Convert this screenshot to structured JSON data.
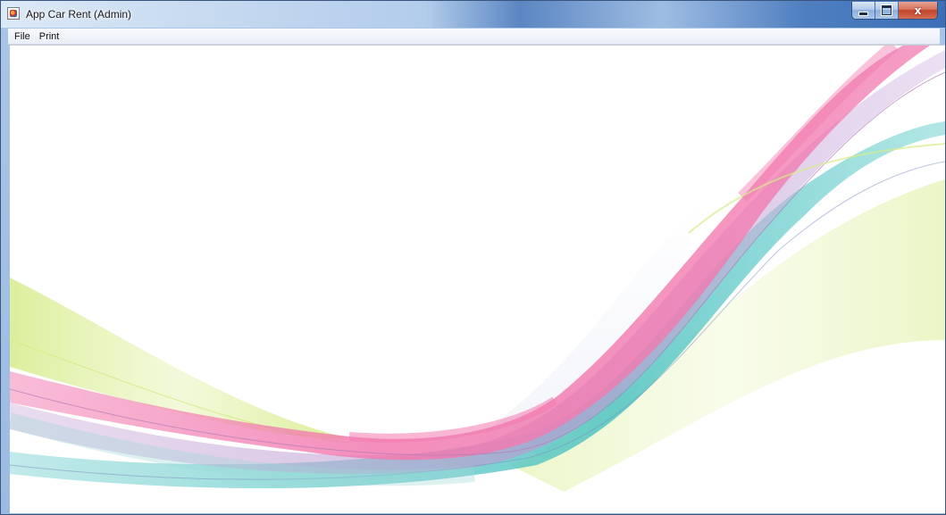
{
  "window": {
    "title": "App Car Rent (Admin)",
    "icon": "java-app-icon",
    "controls": {
      "minimize": "minimize-icon",
      "maximize": "maximize-icon",
      "close": "close-icon",
      "close_glyph": "x"
    }
  },
  "menubar": {
    "items": [
      "File",
      "Print"
    ]
  },
  "content": {
    "wallpaper": "abstract-wave-background",
    "colors": {
      "pink": "#f27ab0",
      "teal": "#4fc3c2",
      "lime": "#d6ec8a",
      "lavender": "#c9a7d8",
      "background": "#ffffff"
    }
  }
}
